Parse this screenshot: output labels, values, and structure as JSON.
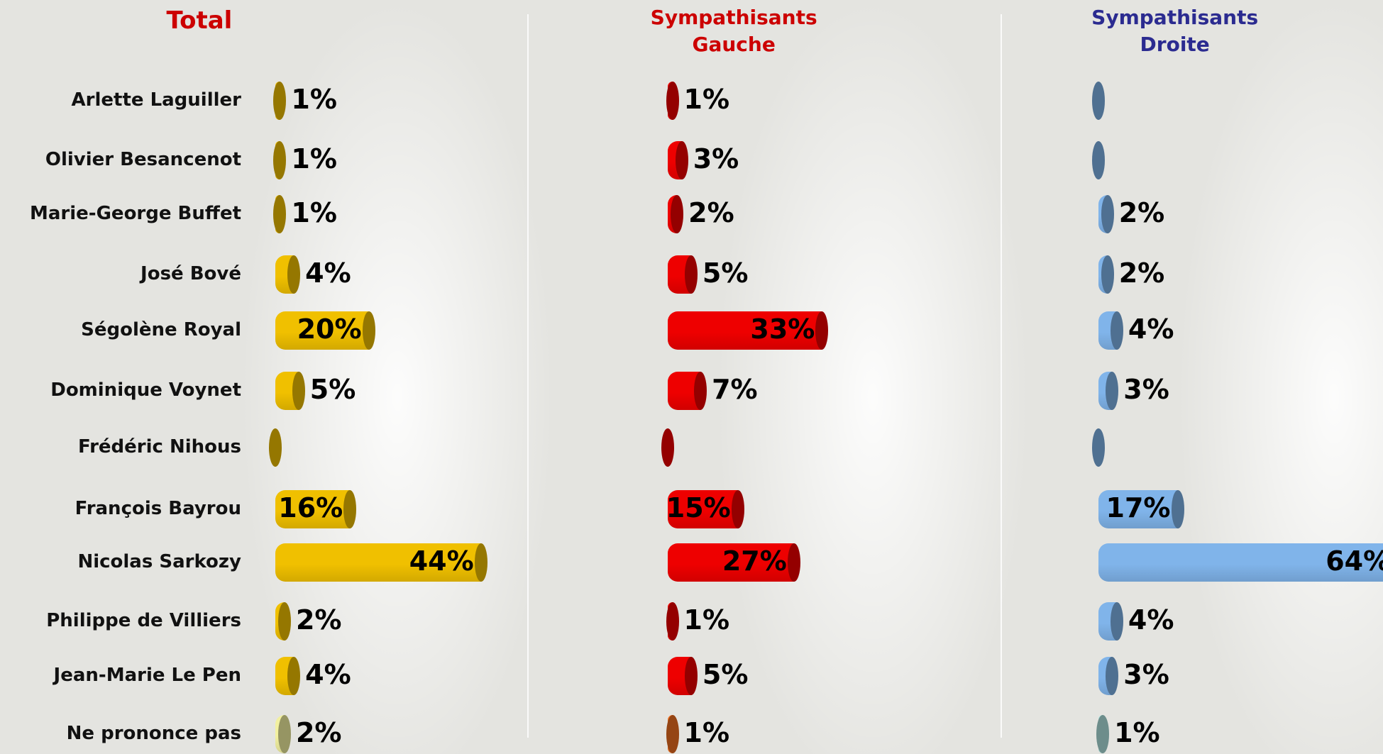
{
  "chart_data": [
    {
      "type": "bar",
      "title": "Total",
      "title_color": "#cc0000",
      "categories": [
        "Arlette Laguiller",
        "Olivier Besancenot",
        "Marie-George Buffet",
        "José Bové",
        "Ségolène Royal",
        "Dominique Voynet",
        "Frédéric Nihous",
        "François Bayrou",
        "Nicolas Sarkozy",
        "Philippe de Villiers",
        "Jean-Marie Le Pen",
        "Ne prononce pas"
      ],
      "values": [
        1,
        1,
        1,
        4,
        20,
        5,
        0,
        16,
        44,
        2,
        4,
        2
      ],
      "value_labels": [
        "1%",
        "1%",
        "1%",
        "4%",
        "20%",
        "5%",
        null,
        "16%",
        "44%",
        "2%",
        "4%",
        "2%"
      ],
      "colors": [
        "#f0c000",
        "#f0c000",
        "#f0c000",
        "#f0c000",
        "#f0c000",
        "#f0c000",
        "#f0c000",
        "#f0c000",
        "#f0c000",
        "#f0c000",
        "#f0c000",
        "#f2f0a0"
      ]
    },
    {
      "type": "bar",
      "title": "Sympathisants Gauche",
      "title_color": "#cc0000",
      "values": [
        1,
        3,
        2,
        5,
        33,
        7,
        0,
        15,
        27,
        1,
        5,
        1
      ],
      "value_labels": [
        "1%",
        "3%",
        "2%",
        "5%",
        "33%",
        "7%",
        null,
        "15%",
        "27%",
        "1%",
        "5%",
        "1%"
      ],
      "colors": [
        "#ee0000",
        "#ee0000",
        "#ee0000",
        "#ee0000",
        "#ee0000",
        "#ee0000",
        "#ee0000",
        "#ee0000",
        "#ee0000",
        "#ee0000",
        "#ee0000",
        "#f07020"
      ]
    },
    {
      "type": "bar",
      "title": "Sympathisants Droite",
      "title_color": "#2b2b90",
      "values": [
        0,
        0,
        2,
        2,
        4,
        3,
        0,
        17,
        64,
        4,
        3,
        1
      ],
      "value_labels": [
        null,
        null,
        "2%",
        "2%",
        "4%",
        "3%",
        null,
        "17%",
        "64%",
        "4%",
        "3%",
        "1%"
      ],
      "colors": [
        "#80b4ea",
        "#80b4ea",
        "#80b4ea",
        "#80b4ea",
        "#80b4ea",
        "#80b4ea",
        "#80b4ea",
        "#80b4ea",
        "#80b4ea",
        "#80b4ea",
        "#80b4ea",
        "#b0e4e0"
      ]
    }
  ]
}
